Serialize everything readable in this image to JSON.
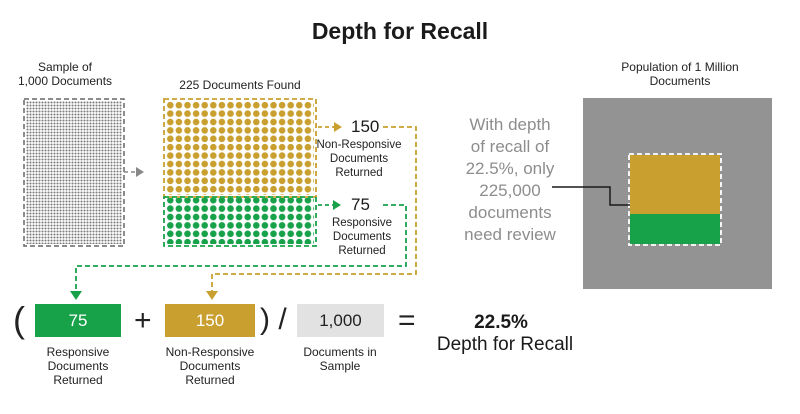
{
  "title": "Depth for Recall",
  "sample": {
    "label_line1": "Sample of",
    "label_line2": "1,000 Documents"
  },
  "found": {
    "label": "225 Documents Found"
  },
  "nonresponsive": {
    "count": "150",
    "line1": "Non-Responsive",
    "line2": "Documents",
    "line3": "Returned"
  },
  "responsive": {
    "count": "75",
    "line1": "Responsive",
    "line2": "Documents",
    "line3": "Returned"
  },
  "callout": {
    "line1": "With depth",
    "line2": "of recall of",
    "line3": "22.5%, only",
    "line4": "225,000",
    "line5": "documents",
    "line6": "need review"
  },
  "population": {
    "line1": "Population of 1 Million",
    "line2": "Documents"
  },
  "formula": {
    "open_paren": "(",
    "plus": "+",
    "close_slash": ") /",
    "equals": "=",
    "responsive_value": "75",
    "nonresponsive_value": "150",
    "sample_value": "1,000",
    "responsive_l1": "Responsive",
    "responsive_l2": "Documents",
    "responsive_l3": "Returned",
    "nonresponsive_l1": "Non-Responsive",
    "nonresponsive_l2": "Documents",
    "nonresponsive_l3": "Returned",
    "sample_l1": "Documents in",
    "sample_l2": "Sample",
    "result_value": "22.5%",
    "result_label": "Depth for Recall"
  },
  "colors": {
    "gold": "#c9a02f",
    "green": "#17a24a",
    "gray_population": "#939393",
    "gray_box": "#e2e2e2",
    "dots_gray": "#7a7a7a"
  }
}
